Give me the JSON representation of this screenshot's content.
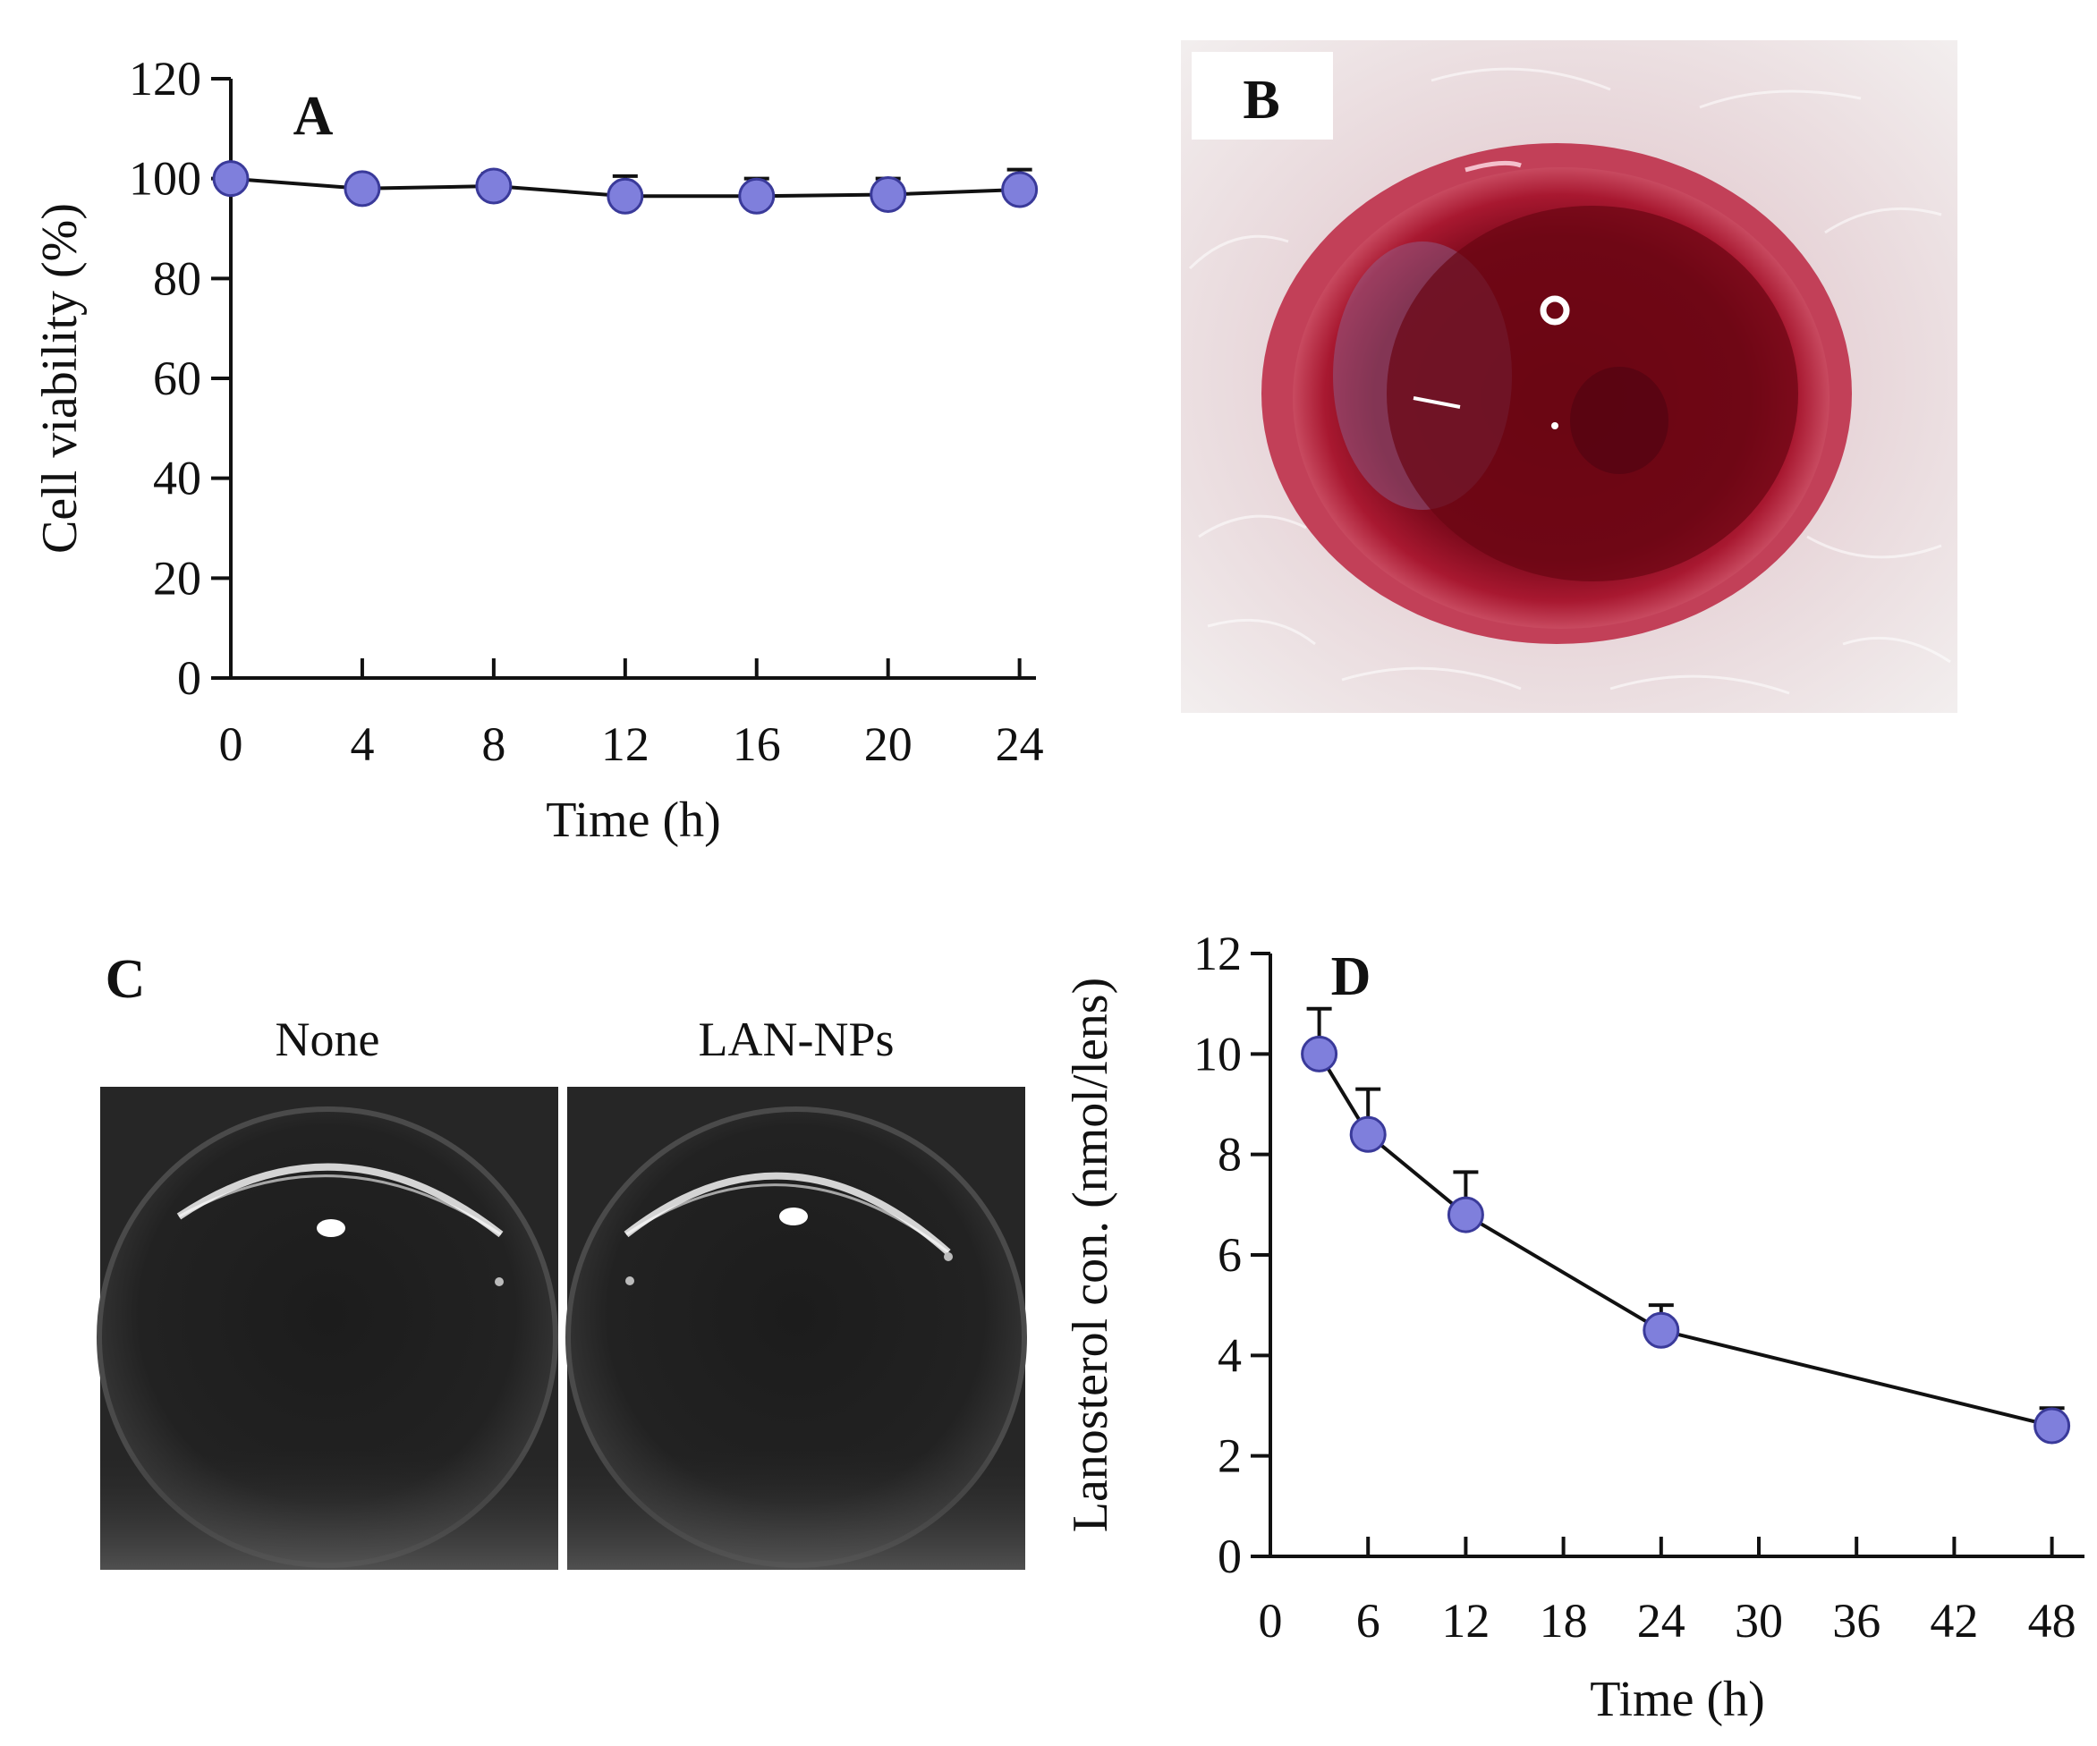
{
  "panels": {
    "B": {
      "label": "B"
    },
    "C": {
      "label": "C",
      "left_title": "None",
      "right_title": "LAN-NPs"
    }
  },
  "colors": {
    "marker_fill": "#7f7fdc",
    "marker_edge": "#3a3a9a",
    "line": "#111111"
  },
  "chart_data": [
    {
      "panel": "A",
      "type": "line",
      "title": "A",
      "xlabel": "Time (h)",
      "ylabel": "Cell viability (%)",
      "xlim": [
        0,
        24.5
      ],
      "ylim": [
        0,
        120
      ],
      "xticks": [
        0,
        4,
        8,
        12,
        16,
        20,
        24
      ],
      "yticks": [
        0,
        20,
        40,
        60,
        80,
        100,
        120
      ],
      "grid": false,
      "series": [
        {
          "name": "Cell viability",
          "x": [
            0,
            4,
            8,
            12,
            16,
            20,
            24
          ],
          "y": [
            100,
            98,
            98.5,
            96.5,
            96.5,
            96.8,
            97.8
          ],
          "err": [
            0,
            1.5,
            2.5,
            4,
            3.5,
            3.2,
            4
          ]
        }
      ]
    },
    {
      "panel": "D",
      "type": "line",
      "title": "D",
      "xlabel": "Time (h)",
      "ylabel": "Lanosterol  con. (nmol/lens)",
      "xlim": [
        0,
        50
      ],
      "ylim": [
        0,
        12
      ],
      "xticks": [
        0,
        6,
        12,
        18,
        24,
        30,
        36,
        42,
        48
      ],
      "yticks": [
        0,
        2,
        4,
        6,
        8,
        10,
        12
      ],
      "grid": false,
      "series": [
        {
          "name": "Lanosterol concentration",
          "x": [
            3,
            6,
            12,
            24,
            48
          ],
          "y": [
            10,
            8.4,
            6.8,
            4.5,
            2.6
          ],
          "err": [
            0.9,
            0.9,
            0.85,
            0.5,
            0.35
          ]
        }
      ]
    }
  ]
}
